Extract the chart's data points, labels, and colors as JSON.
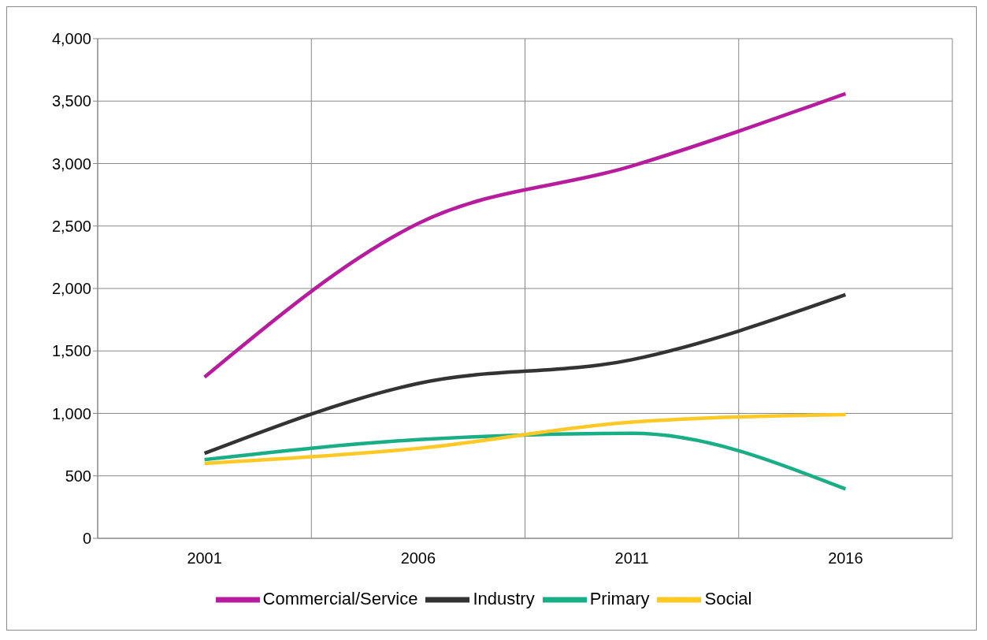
{
  "chart_data": {
    "type": "line",
    "categories": [
      "2001",
      "2006",
      "2011",
      "2016"
    ],
    "series": [
      {
        "name": "Primary",
        "color": "#1aae86",
        "values": [
          630,
          790,
          840,
          395
        ]
      },
      {
        "name": "Industry",
        "color": "#333333",
        "values": [
          680,
          1240,
          1430,
          1950
        ]
      },
      {
        "name": "Commercial/Service",
        "color": "#b81c9e",
        "values": [
          1290,
          2520,
          2980,
          3560
        ]
      },
      {
        "name": "Social",
        "color": "#fec925",
        "values": [
          600,
          720,
          930,
          990
        ]
      }
    ],
    "ylim": [
      0,
      4000
    ],
    "yticks": [
      {
        "value": 0,
        "label": "0"
      },
      {
        "value": 500,
        "label": "500"
      },
      {
        "value": 1000,
        "label": "1,000"
      },
      {
        "value": 1500,
        "label": "1,500"
      },
      {
        "value": 2000,
        "label": "2,000"
      },
      {
        "value": 2500,
        "label": "2,500"
      },
      {
        "value": 3000,
        "label": "3,000"
      },
      {
        "value": 3500,
        "label": "3,500"
      },
      {
        "value": 4000,
        "label": "4,000"
      }
    ],
    "grid": true,
    "legend": "bottom",
    "marker": "none",
    "line_style": "solid"
  }
}
